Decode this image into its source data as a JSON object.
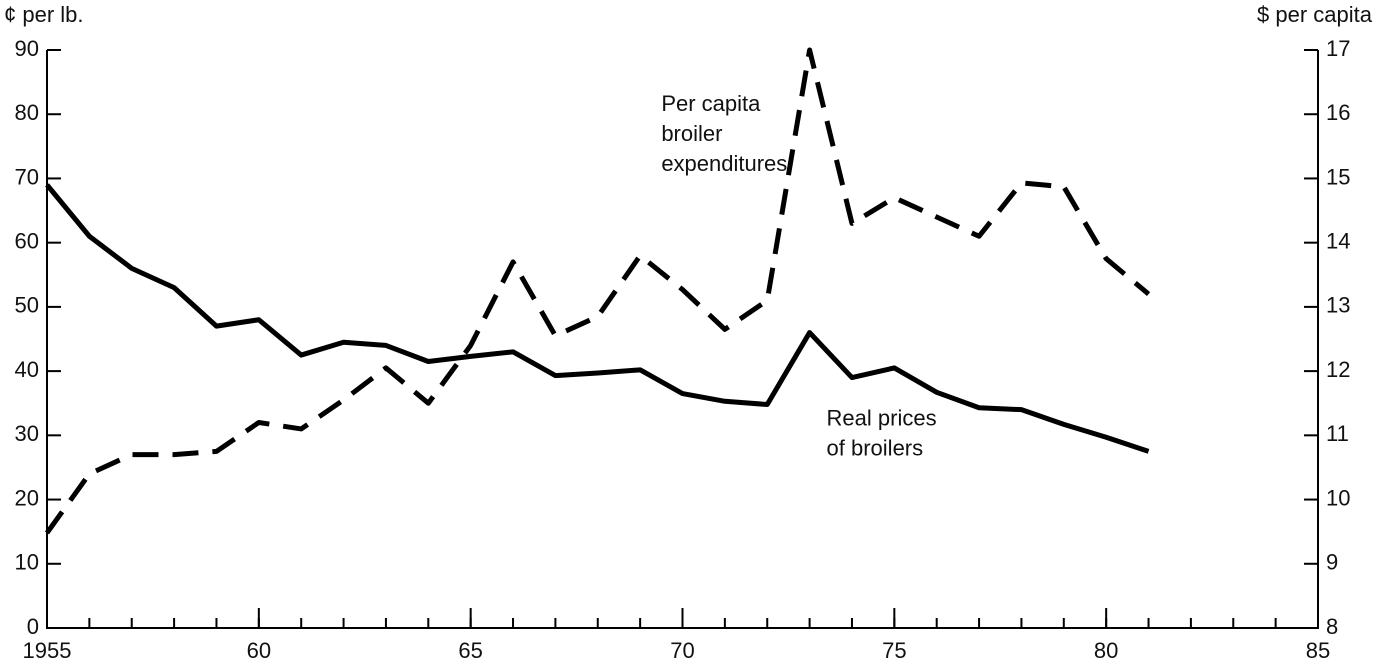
{
  "chart_data": {
    "type": "line",
    "y_label": "¢ per lb.",
    "y2_label": "$ per capita",
    "x": [
      1955,
      1956,
      1957,
      1958,
      1959,
      1960,
      1961,
      1962,
      1963,
      1964,
      1965,
      1966,
      1967,
      1968,
      1969,
      1970,
      1971,
      1972,
      1973,
      1974,
      1975,
      1976,
      1977,
      1978,
      1979,
      1980,
      1981
    ],
    "series": [
      {
        "name": "Real prices of broilers",
        "color": "#000000",
        "style": "solid",
        "values": [
          69,
          61,
          56,
          53,
          47,
          48,
          42.5,
          44.5,
          44,
          41.5,
          42.3,
          43,
          39.3,
          39.7,
          40.2,
          36.5,
          35.3,
          34.8,
          46,
          39,
          40.5,
          36.7,
          34.3,
          34,
          31.7,
          29.7,
          27.5
        ]
      },
      {
        "name": "Per capita broiler expenditures",
        "color": "#000000",
        "style": "dashed",
        "axis": "y2",
        "values": [
          9.48,
          10.4,
          10.7,
          10.7,
          10.75,
          11.2,
          11.1,
          11.55,
          12.05,
          11.5,
          12.4,
          13.7,
          12.55,
          12.85,
          13.8,
          13.27,
          12.65,
          13.1,
          17,
          14.3,
          14.7,
          14.4,
          14.1,
          14.93,
          14.87,
          13.75,
          13.2
        ]
      }
    ],
    "annotations": [
      {
        "lines": [
          "Per capita",
          "broiler",
          "expenditures"
        ],
        "x": 1969.5,
        "y": 78
      },
      {
        "lines": [
          "Real prices",
          "of broilers"
        ],
        "x": 1973.4,
        "y": 29
      }
    ],
    "xlim": [
      1955,
      1985
    ],
    "xticks": [
      1955,
      {
        "value": 1960,
        "label": "60"
      },
      {
        "value": 1965,
        "label": "65"
      },
      {
        "value": 1970,
        "label": "70"
      },
      {
        "value": 1975,
        "label": "75"
      },
      {
        "value": 1980,
        "label": "80"
      },
      {
        "value": 1985,
        "label": "85"
      }
    ],
    "ylim": [
      0,
      90
    ],
    "yticks": [
      0,
      10,
      20,
      30,
      40,
      50,
      60,
      70,
      80,
      90
    ],
    "y2lim": [
      8,
      17
    ],
    "y2ticks": [
      8,
      9,
      10,
      11,
      12,
      13,
      14,
      15,
      16,
      17
    ],
    "grid": false
  }
}
